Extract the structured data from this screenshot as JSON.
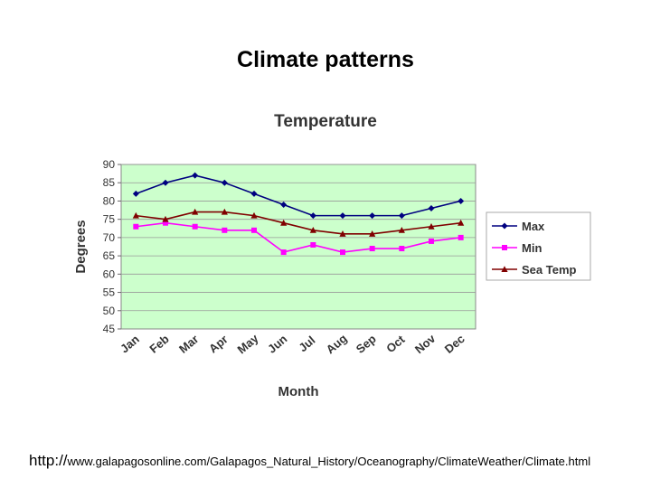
{
  "slide": {
    "title": "Climate patterns",
    "source_protocol": "http://",
    "source_path": "www.galapagosonline.com/Galapagos_Natural_History/Oceanography/ClimateWeather/Climate.html"
  },
  "colors": {
    "plot_bg": "#ccffcc",
    "grid": "#999999",
    "max": "#000080",
    "min": "#ff00ff",
    "sea_temp": "#800000",
    "label_text": "#333333"
  },
  "chart_data": {
    "type": "line",
    "title": "Temperature",
    "xlabel": "Month",
    "ylabel": "Degrees",
    "ylim": [
      45,
      90
    ],
    "yticks": [
      90,
      85,
      80,
      75,
      70,
      65,
      60,
      55,
      50,
      45
    ],
    "grid": true,
    "legend_position": "right",
    "categories": [
      "Jan",
      "Feb",
      "Mar",
      "Apr",
      "May",
      "Jun",
      "Jul",
      "Aug",
      "Sep",
      "Oct",
      "Nov",
      "Dec"
    ],
    "series": [
      {
        "name": "Max",
        "marker": "diamond",
        "color": "#000080",
        "values": [
          82,
          85,
          87,
          85,
          82,
          79,
          76,
          76,
          76,
          76,
          78,
          80
        ]
      },
      {
        "name": "Min",
        "marker": "square",
        "color": "#ff00ff",
        "values": [
          73,
          74,
          73,
          72,
          72,
          66,
          68,
          66,
          67,
          67,
          69,
          70
        ]
      },
      {
        "name": "Sea Temp",
        "marker": "triangle",
        "color": "#800000",
        "values": [
          76,
          75,
          77,
          77,
          76,
          74,
          72,
          71,
          71,
          72,
          73,
          74
        ]
      }
    ]
  }
}
